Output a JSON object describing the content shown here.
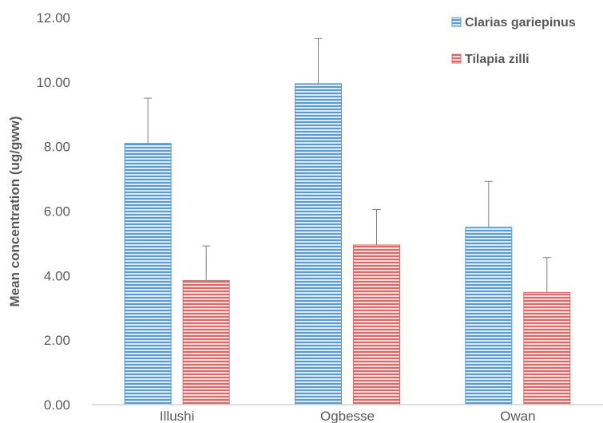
{
  "chart_data": {
    "type": "bar",
    "title": "",
    "xlabel": "",
    "ylabel": "Mean concentration (ug/gww)",
    "ylim": [
      0,
      12
    ],
    "yticks": [
      "0.00",
      "2.00",
      "4.00",
      "6.00",
      "8.00",
      "10.00",
      "12.00"
    ],
    "categories": [
      "Illushi",
      "Ogbesse",
      "Owan"
    ],
    "grid": false,
    "legend_position": "top-right",
    "series": [
      {
        "name": "Clarias gariepinus",
        "color": "#5b9bd5",
        "values": [
          8.1,
          9.95,
          5.5
        ],
        "error": [
          1.4,
          1.4,
          1.42
        ]
      },
      {
        "name": "Tilapia zilli",
        "color": "#e06666",
        "values": [
          3.85,
          4.95,
          3.48
        ],
        "error": [
          1.07,
          1.1,
          1.08
        ]
      }
    ]
  }
}
